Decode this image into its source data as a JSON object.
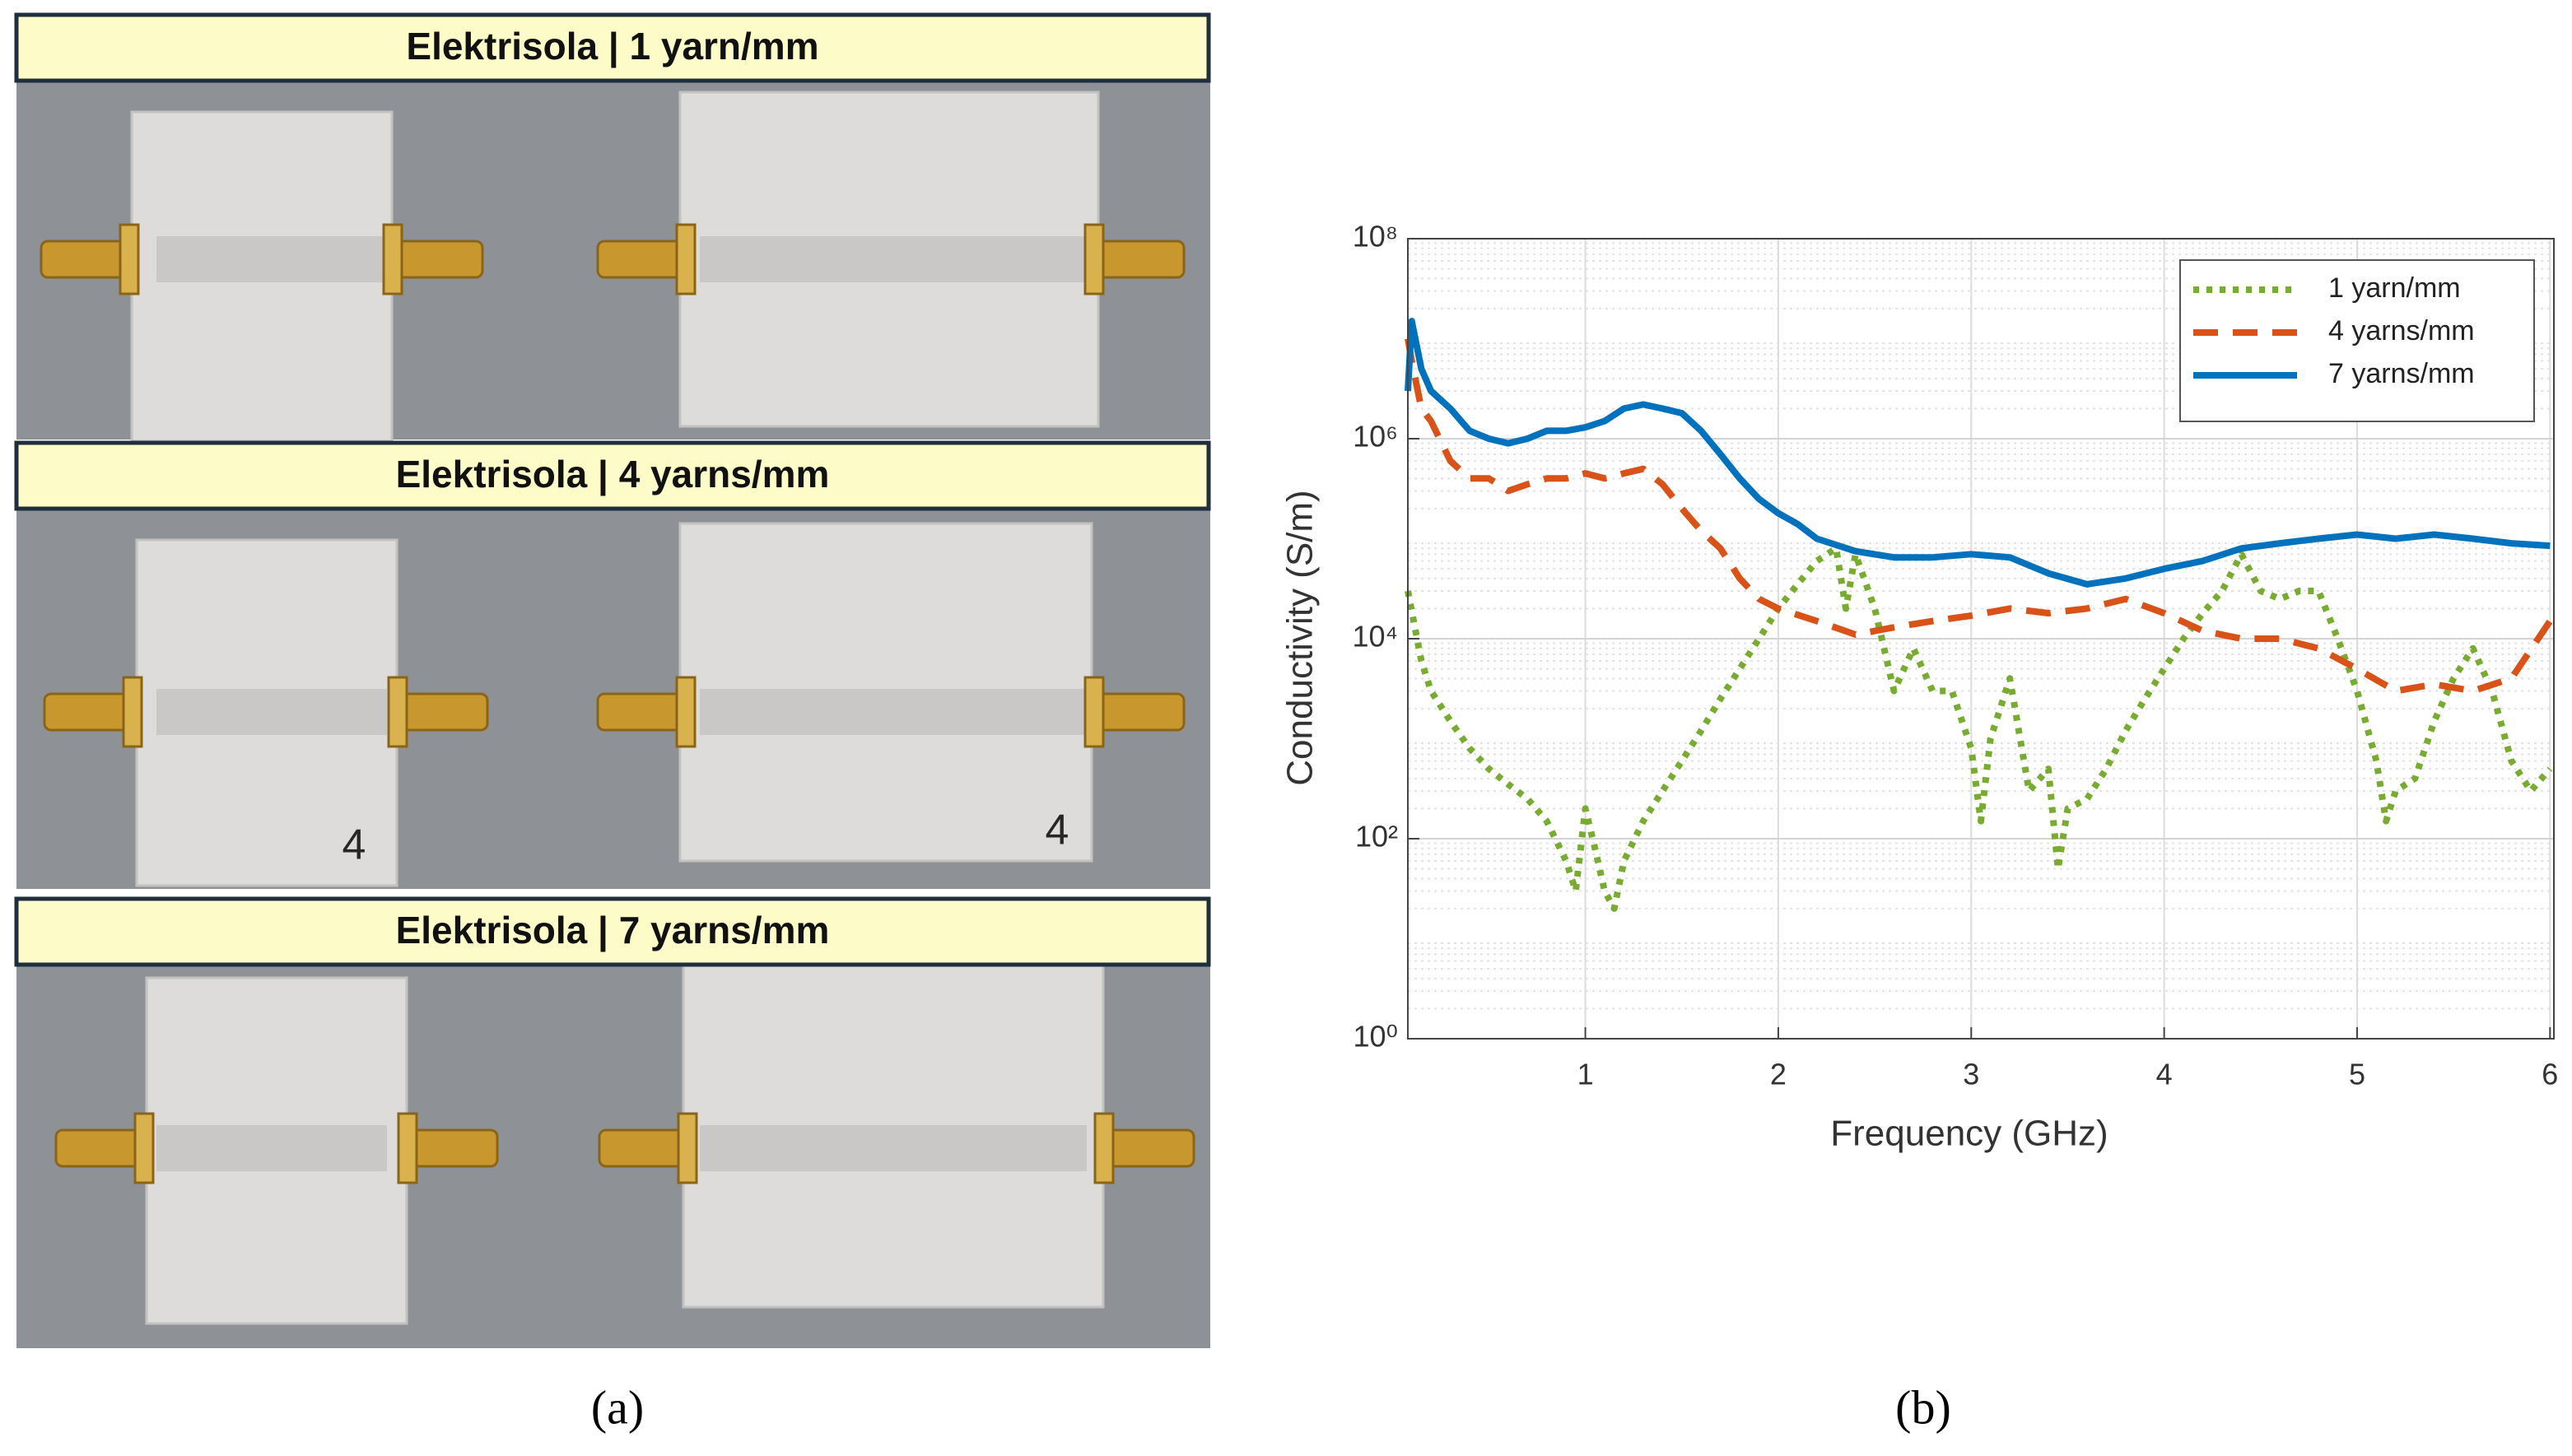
{
  "photo_panel": {
    "labels": [
      "Elektrisola | 1 yarn/mm",
      "Elektrisola | 4 yarns/mm",
      "Elektrisola | 7 yarns/mm"
    ],
    "board_marks": [
      "4",
      "4"
    ],
    "caption": "(a)"
  },
  "chart_data": {
    "type": "line",
    "caption": "(b)",
    "xlabel": "Frequency (GHz)",
    "ylabel": "Conductivity (S/m)",
    "xlim": [
      0.08,
      6.02
    ],
    "xticks": [
      1,
      2,
      3,
      4,
      5,
      6
    ],
    "ylim": [
      1,
      100000000
    ],
    "log_y": true,
    "grid": true,
    "legend": "upper right",
    "yticks": [
      {
        "value": 1,
        "label": "10⁰"
      },
      {
        "value": 100,
        "label": "10²"
      },
      {
        "value": 10000,
        "label": "10⁴"
      },
      {
        "value": 1000000,
        "label": "10⁶"
      },
      {
        "value": 100000000,
        "label": "10⁸"
      }
    ],
    "series": [
      {
        "name": "1 yarn/mm",
        "color": "#77ac30",
        "style": "dotted",
        "x": [
          0.08,
          0.15,
          0.2,
          0.3,
          0.4,
          0.5,
          0.6,
          0.7,
          0.8,
          0.9,
          0.95,
          1.0,
          1.05,
          1.1,
          1.15,
          1.2,
          1.3,
          1.4,
          1.5,
          1.6,
          1.7,
          1.8,
          1.9,
          2.0,
          2.1,
          2.2,
          2.3,
          2.35,
          2.4,
          2.5,
          2.6,
          2.7,
          2.8,
          2.9,
          3.0,
          3.05,
          3.1,
          3.2,
          3.3,
          3.4,
          3.45,
          3.5,
          3.6,
          3.7,
          3.8,
          3.9,
          4.0,
          4.1,
          4.2,
          4.3,
          4.4,
          4.5,
          4.6,
          4.7,
          4.8,
          4.9,
          5.0,
          5.1,
          5.15,
          5.2,
          5.3,
          5.4,
          5.5,
          5.6,
          5.7,
          5.8,
          5.9,
          6.0
        ],
        "values": [
          30000,
          6000,
          3000,
          1500,
          800,
          500,
          350,
          250,
          150,
          60,
          30,
          200,
          80,
          30,
          20,
          60,
          150,
          300,
          600,
          1200,
          2500,
          5000,
          10000,
          20000,
          35000,
          60000,
          80000,
          20000,
          70000,
          20000,
          3000,
          8000,
          3000,
          3000,
          800,
          150,
          1000,
          4000,
          300,
          500,
          50,
          200,
          250,
          500,
          1200,
          2500,
          5000,
          10000,
          18000,
          30000,
          70000,
          30000,
          25000,
          30000,
          30000,
          10000,
          3000,
          600,
          150,
          300,
          400,
          1500,
          4000,
          8000,
          3000,
          600,
          300,
          500
        ]
      },
      {
        "name": "4 yarns/mm",
        "color": "#d95319",
        "style": "dashed",
        "x": [
          0.08,
          0.1,
          0.15,
          0.2,
          0.3,
          0.4,
          0.5,
          0.6,
          0.7,
          0.8,
          0.9,
          1.0,
          1.1,
          1.2,
          1.3,
          1.4,
          1.5,
          1.6,
          1.7,
          1.8,
          1.9,
          2.0,
          2.2,
          2.4,
          2.6,
          2.8,
          3.0,
          3.2,
          3.4,
          3.6,
          3.8,
          4.0,
          4.2,
          4.4,
          4.6,
          4.8,
          5.0,
          5.2,
          5.4,
          5.6,
          5.8,
          6.0
        ],
        "values": [
          10000000,
          6000000,
          2000000,
          1500000,
          600000,
          400000,
          400000,
          300000,
          350000,
          400000,
          400000,
          450000,
          400000,
          450000,
          500000,
          350000,
          200000,
          120000,
          80000,
          40000,
          25000,
          20000,
          15000,
          11000,
          13000,
          15000,
          17000,
          20000,
          18000,
          20000,
          25000,
          18000,
          12000,
          10000,
          10000,
          8000,
          5000,
          3000,
          3500,
          3000,
          4000,
          15000
        ]
      },
      {
        "name": "7 yarns/mm",
        "color": "#0072bd",
        "style": "solid",
        "x": [
          0.08,
          0.1,
          0.15,
          0.2,
          0.3,
          0.4,
          0.5,
          0.6,
          0.7,
          0.8,
          0.9,
          1.0,
          1.1,
          1.2,
          1.3,
          1.4,
          1.5,
          1.6,
          1.7,
          1.8,
          1.9,
          2.0,
          2.1,
          2.2,
          2.4,
          2.6,
          2.8,
          3.0,
          3.2,
          3.4,
          3.6,
          3.8,
          4.0,
          4.2,
          4.4,
          4.6,
          4.8,
          5.0,
          5.2,
          5.4,
          5.6,
          5.8,
          6.0
        ],
        "values": [
          3000000,
          15000000,
          5000000,
          3000000,
          2000000,
          1200000,
          1000000,
          900000,
          1000000,
          1200000,
          1200000,
          1300000,
          1500000,
          2000000,
          2200000,
          2000000,
          1800000,
          1200000,
          700000,
          400000,
          250000,
          180000,
          140000,
          100000,
          75000,
          65000,
          65000,
          70000,
          65000,
          45000,
          35000,
          40000,
          50000,
          60000,
          80000,
          90000,
          100000,
          110000,
          100000,
          110000,
          100000,
          90000,
          85000
        ]
      }
    ]
  }
}
